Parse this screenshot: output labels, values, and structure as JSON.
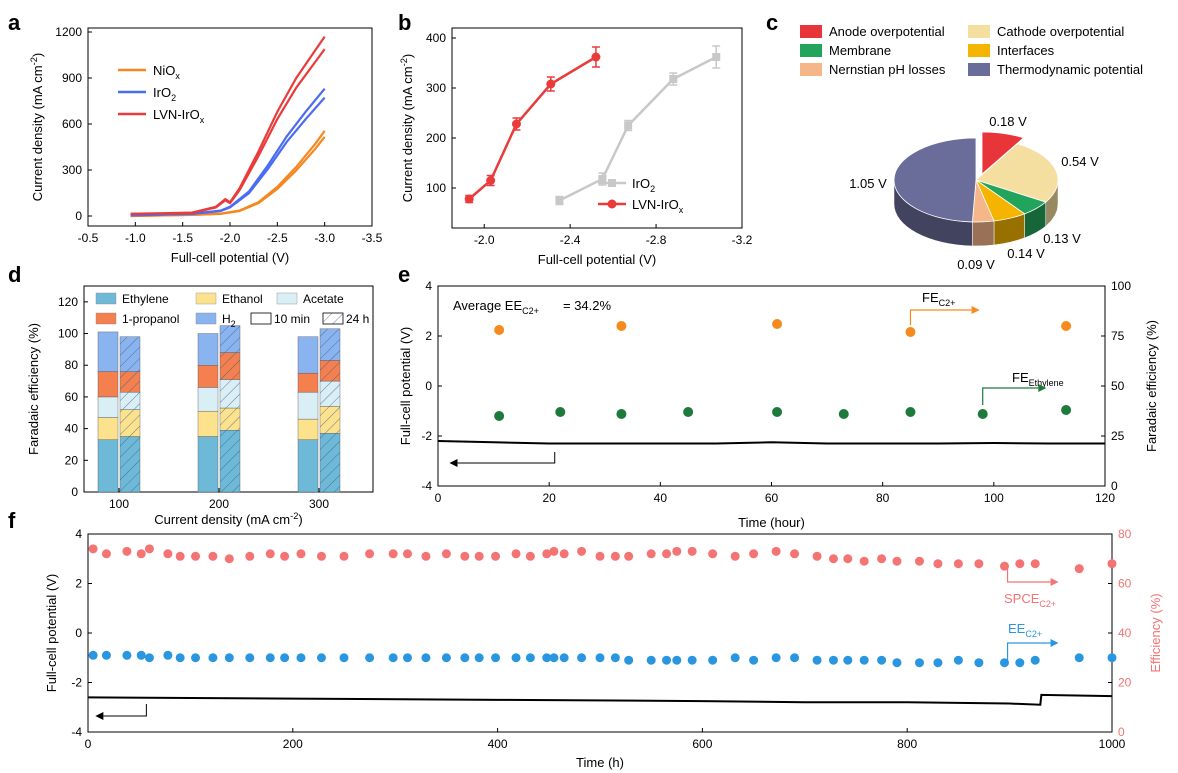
{
  "chart_data": [
    {
      "panel": "a",
      "type": "line",
      "xlabel": "Full-cell potential (V)",
      "ylabel": "Current density (mA cm-2)",
      "xlim": [
        -0.5,
        -3.5
      ],
      "ylim": [
        0,
        1200
      ],
      "xticks": [
        "-0.5",
        "-1.0",
        "-1.5",
        "-2.0",
        "-2.5",
        "-3.0",
        "-3.5"
      ],
      "yticks": [
        "0",
        "300",
        "600",
        "900",
        "1200"
      ],
      "series": [
        {
          "name": "NiOx",
          "label_main": "NiO",
          "label_sub": "x",
          "color": "#f5871f",
          "x": [
            -0.95,
            -1.3,
            -1.6,
            -1.9,
            -2.1,
            -2.3,
            -2.5,
            -2.7,
            -2.9,
            -3.0
          ],
          "y": [
            0,
            4,
            8,
            15,
            35,
            90,
            190,
            320,
            470,
            555
          ]
        },
        {
          "name": "IrO2",
          "label_main": "IrO",
          "label_sub": "2",
          "color": "#4b6cf0",
          "x": [
            -0.95,
            -1.3,
            -1.6,
            -1.9,
            -2.0,
            -2.2,
            -2.4,
            -2.6,
            -2.8,
            -3.0
          ],
          "y": [
            5,
            10,
            15,
            35,
            60,
            160,
            330,
            520,
            680,
            830
          ]
        },
        {
          "name": "LVN-IrOx",
          "label_main": "LVN-IrO",
          "label_sub": "x",
          "color": "#ea3b3b",
          "x": [
            -0.95,
            -1.3,
            -1.6,
            -1.85,
            -1.95,
            -2.0,
            -2.1,
            -2.3,
            -2.5,
            -2.7,
            -2.9,
            -3.0
          ],
          "y": [
            15,
            18,
            22,
            60,
            110,
            90,
            180,
            420,
            680,
            900,
            1080,
            1170
          ]
        }
      ]
    },
    {
      "panel": "b",
      "type": "line",
      "xlabel": "Full-cell potential (V)",
      "ylabel": "Current density (mA cm-2)",
      "xlim": [
        -1.85,
        -3.2
      ],
      "ylim": [
        20,
        420
      ],
      "xticks": [
        "-2.0",
        "-2.4",
        "-2.8",
        "-3.2"
      ],
      "yticks": [
        "100",
        "200",
        "300",
        "400"
      ],
      "series": [
        {
          "name": "IrO2",
          "label_main": "IrO",
          "label_sub": "2",
          "color": "#c8c8c8",
          "x": [
            -2.35,
            -2.55,
            -2.67,
            -2.88,
            -3.08
          ],
          "y": [
            75,
            118,
            225,
            318,
            362
          ],
          "err": [
            8,
            12,
            10,
            12,
            22
          ]
        },
        {
          "name": "LVN-IrOx",
          "label_main": "LVN-IrO",
          "label_sub": "x",
          "color": "#ea3b3b",
          "x": [
            -1.93,
            -2.03,
            -2.15,
            -2.31,
            -2.52
          ],
          "y": [
            78,
            115,
            228,
            308,
            362
          ],
          "err": [
            7,
            10,
            12,
            14,
            20
          ]
        }
      ]
    },
    {
      "panel": "c",
      "type": "pie",
      "legend": [
        {
          "label": "Anode overpotential",
          "color": "#e8353a"
        },
        {
          "label": "Cathode overpotential",
          "color": "#f4dea0"
        },
        {
          "label": "Membrane",
          "color": "#23a45c"
        },
        {
          "label": "Interfaces",
          "color": "#f4b400"
        },
        {
          "label": "Nernstian pH losses",
          "color": "#f5b78a"
        },
        {
          "label": "Thermodynamic potential",
          "color": "#6a6d9a"
        }
      ],
      "slices": [
        {
          "name": "Anode overpotential",
          "value": 0.18,
          "label": "0.18 V",
          "color": "#e8353a"
        },
        {
          "name": "Cathode overpotential",
          "value": 0.54,
          "label": "0.54 V",
          "color": "#f4dea0"
        },
        {
          "name": "Membrane",
          "value": 0.13,
          "label": "0.13 V",
          "color": "#23a45c"
        },
        {
          "name": "Interfaces",
          "value": 0.14,
          "label": "0.14 V",
          "color": "#f4b400"
        },
        {
          "name": "Nernstian pH losses",
          "value": 0.09,
          "label": "0.09 V",
          "color": "#f5b78a"
        },
        {
          "name": "Thermodynamic potential",
          "value": 1.05,
          "label": "1.05 V",
          "color": "#6a6d9a"
        }
      ]
    },
    {
      "panel": "d",
      "type": "bar",
      "xlabel": "Current density (mA cm-2)",
      "ylabel": "Faradaic efficiency (%)",
      "ylim": [
        0,
        130
      ],
      "yticks": [
        "0",
        "20",
        "40",
        "60",
        "80",
        "100",
        "120"
      ],
      "categories": [
        "100",
        "200",
        "300"
      ],
      "conditions": [
        "10 min",
        "24 h"
      ],
      "legend": [
        {
          "label": "Ethylene",
          "color": "#6fb9d8"
        },
        {
          "label": "Ethanol",
          "color": "#fde28e"
        },
        {
          "label": "Acetate",
          "color": "#d9eff5"
        },
        {
          "label": "1-propanol",
          "color": "#f47f4f"
        },
        {
          "label": "H2",
          "color": "#8ab4ef"
        }
      ],
      "series": [
        {
          "name": "Ethylene",
          "color": "#6fb9d8",
          "values": [
            [
              33,
              35
            ],
            [
              35,
              39
            ],
            [
              33,
              37
            ]
          ]
        },
        {
          "name": "Ethanol",
          "color": "#fde28e",
          "values": [
            [
              14,
              17
            ],
            [
              16,
              14
            ],
            [
              13,
              17
            ]
          ]
        },
        {
          "name": "Acetate",
          "color": "#d9eff5",
          "values": [
            [
              13,
              11
            ],
            [
              15,
              18
            ],
            [
              17,
              16
            ]
          ]
        },
        {
          "name": "1-propanol",
          "color": "#f47f4f",
          "values": [
            [
              16,
              13
            ],
            [
              14,
              17
            ],
            [
              12,
              13
            ]
          ]
        },
        {
          "name": "H2",
          "color": "#8ab4ef",
          "values": [
            [
              25,
              22
            ],
            [
              20,
              17
            ],
            [
              23,
              20
            ]
          ]
        }
      ]
    },
    {
      "panel": "e",
      "type": "scatter",
      "xlabel": "Time (hour)",
      "ylabel_left": "Full-cell potential (V)",
      "ylabel_right": "Faradaic efficiency (%)",
      "xlim": [
        0,
        120
      ],
      "ylim_left": [
        -4,
        4
      ],
      "ylim_right": [
        0,
        100
      ],
      "xticks": [
        "0",
        "20",
        "40",
        "60",
        "80",
        "100",
        "120"
      ],
      "yticks_left": [
        "-4",
        "-2",
        "0",
        "2",
        "4"
      ],
      "yticks_right": [
        "0",
        "25",
        "50",
        "75",
        "100"
      ],
      "annotation_main": "Average EE",
      "annotation_sub": "C2+",
      "annotation_value": " = 34.2%",
      "fe_c2_main": "FE",
      "fe_c2_sub": "C2+",
      "fe_eth_main": "FE",
      "fe_eth_sub": "Ethylene",
      "potential_series": {
        "name": "Full-cell potential",
        "color": "#000000",
        "x": [
          0,
          10,
          20,
          30,
          40,
          50,
          60,
          70,
          80,
          90,
          100,
          110,
          120
        ],
        "y": [
          -2.2,
          -2.25,
          -2.3,
          -2.3,
          -2.3,
          -2.3,
          -2.25,
          -2.3,
          -2.3,
          -2.3,
          -2.28,
          -2.3,
          -2.3
        ]
      },
      "fe_c2_series": {
        "name": "FE C2+",
        "color": "#f58a1f",
        "x": [
          11,
          33,
          61,
          85,
          113
        ],
        "y": [
          78,
          80,
          81,
          77,
          80
        ]
      },
      "fe_ethylene_series": {
        "name": "FE Ethylene",
        "color": "#1e7a3a",
        "x": [
          11,
          22,
          33,
          45,
          61,
          73,
          85,
          98,
          113
        ],
        "y": [
          35,
          37,
          36,
          37,
          37,
          36,
          37,
          36,
          38
        ]
      }
    },
    {
      "panel": "f",
      "type": "scatter",
      "xlabel": "Time (h)",
      "ylabel_left": "Full-cell potential (V)",
      "ylabel_right": "Efficiency (%)",
      "xlim": [
        0,
        1000
      ],
      "ylim_left": [
        -4,
        4
      ],
      "ylim_right": [
        0,
        80
      ],
      "xticks": [
        "0",
        "200",
        "400",
        "600",
        "800",
        "1000"
      ],
      "yticks_left": [
        "-4",
        "-2",
        "0",
        "2",
        "4"
      ],
      "yticks_right": [
        "0",
        "20",
        "40",
        "60",
        "80"
      ],
      "spce_main": "SPCE",
      "spce_sub": "C2+",
      "ee_main": "EE",
      "ee_sub": "C2+",
      "potential_series": {
        "name": "Full-cell potential",
        "color": "#000000",
        "x": [
          0,
          200,
          400,
          600,
          700,
          800,
          900,
          930,
          931,
          1000
        ],
        "y": [
          -2.6,
          -2.65,
          -2.7,
          -2.75,
          -2.8,
          -2.8,
          -2.85,
          -2.9,
          -2.5,
          -2.55
        ]
      },
      "spce_series": {
        "name": "SPCE C2+",
        "color": "#f47373",
        "x": [
          5,
          18,
          38,
          52,
          60,
          78,
          90,
          105,
          122,
          138,
          158,
          178,
          192,
          208,
          228,
          250,
          275,
          298,
          312,
          330,
          350,
          368,
          382,
          398,
          418,
          432,
          448,
          455,
          465,
          482,
          500,
          515,
          528,
          550,
          565,
          575,
          590,
          610,
          632,
          650,
          672,
          690,
          712,
          728,
          742,
          758,
          775,
          790,
          812,
          830,
          850,
          870,
          895,
          910,
          925,
          968,
          1000
        ],
        "y": [
          74,
          72,
          73,
          72,
          74,
          72,
          71,
          71,
          71,
          70,
          71,
          72,
          71,
          72,
          71,
          71,
          72,
          72,
          72,
          71,
          72,
          71,
          71,
          71,
          72,
          71,
          72,
          73,
          72,
          73,
          71,
          71,
          71,
          72,
          72,
          73,
          73,
          72,
          71,
          72,
          73,
          72,
          71,
          70,
          70,
          69,
          70,
          69,
          69,
          68,
          68,
          68,
          67,
          68,
          68,
          66,
          68
        ]
      },
      "ee_series": {
        "name": "EE C2+",
        "color": "#2a96e0",
        "x": [
          5,
          18,
          38,
          52,
          60,
          78,
          90,
          105,
          122,
          138,
          158,
          178,
          192,
          208,
          228,
          250,
          275,
          298,
          312,
          330,
          350,
          368,
          382,
          398,
          418,
          432,
          448,
          455,
          465,
          482,
          500,
          515,
          528,
          550,
          565,
          575,
          590,
          610,
          632,
          650,
          672,
          690,
          712,
          728,
          742,
          758,
          775,
          790,
          812,
          830,
          850,
          870,
          895,
          910,
          925,
          968,
          1000
        ],
        "y": [
          31,
          31,
          31,
          31,
          30,
          31,
          30,
          30,
          30,
          30,
          30,
          30,
          30,
          30,
          30,
          30,
          30,
          30,
          30,
          30,
          30,
          30,
          30,
          30,
          30,
          30,
          30,
          30,
          30,
          30,
          30,
          30,
          29,
          29,
          29,
          29,
          29,
          29,
          30,
          29,
          30,
          30,
          29,
          29,
          29,
          29,
          29,
          28,
          28,
          28,
          29,
          28,
          28,
          28,
          29,
          30,
          30
        ]
      }
    }
  ],
  "panel_letters": {
    "a": "a",
    "b": "b",
    "c": "c",
    "d": "d",
    "e": "e",
    "f": "f"
  }
}
